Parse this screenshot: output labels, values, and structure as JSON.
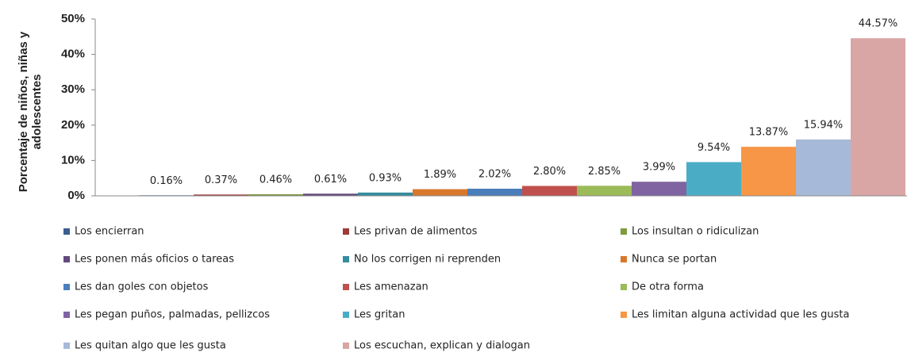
{
  "chart_data": {
    "type": "bar",
    "ylabel": "Porcentaje de niños, niñas y adolescentes",
    "categories": [
      "Los encierran",
      "Les privan de alimentos",
      "Los insultan o ridiculizan",
      "Les ponen más oficios o tareas",
      "No los corrigen ni reprenden",
      "Nunca se portan",
      "Les dan goles con objetos",
      "Les amenazan",
      "De otra forma",
      "Les pegan puños, palmadas, pellizcos",
      "Les gritan",
      "Les limitan alguna actividad que les gusta",
      "Les quitan algo que les gusta",
      "Los escuchan, explican y dialogan"
    ],
    "values": [
      0.16,
      0.37,
      0.46,
      0.61,
      0.93,
      1.89,
      2.02,
      2.8,
      2.85,
      3.99,
      9.54,
      13.87,
      15.94,
      44.57
    ],
    "value_labels": [
      "0.16%",
      "0.37%",
      "0.46%",
      "0.61%",
      "0.93%",
      "1.89%",
      "2.02%",
      "2.80%",
      "2.85%",
      "3.99%",
      "9.54%",
      "13.87%",
      "15.94%",
      "44.57%"
    ],
    "colors": [
      "#3b5e8c",
      "#9e3a38",
      "#7f9a3f",
      "#63497f",
      "#358c9e",
      "#d9772b",
      "#4a7ebb",
      "#c0504d",
      "#9bbb59",
      "#8064a2",
      "#4bacc6",
      "#f79646",
      "#a7b9d9",
      "#d9a5a5"
    ],
    "ylim": [
      0,
      50
    ],
    "yticks": [
      {
        "value": 0,
        "label": "0%"
      },
      {
        "value": 10,
        "label": "10%"
      },
      {
        "value": 20,
        "label": "20%"
      },
      {
        "value": 30,
        "label": "30%"
      },
      {
        "value": 40,
        "label": "40%"
      },
      {
        "value": 50,
        "label": "50%"
      }
    ],
    "legend": "bottom"
  }
}
